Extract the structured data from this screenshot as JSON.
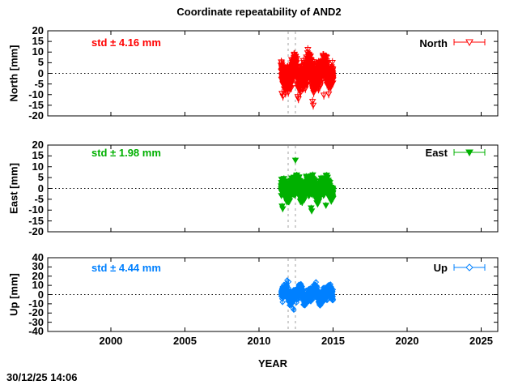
{
  "chart": {
    "title": "Coordinate repeatability of AND2",
    "xlabel": "YEAR",
    "timestamp": "30/12/25 14:06",
    "xlim": [
      1995.74,
      2026.12
    ],
    "xticks": [
      2000,
      2005,
      2010,
      2015,
      2020,
      2025
    ],
    "vlines": [
      2011.97,
      2012.46
    ],
    "vline_color": "#a0a0a0",
    "zero_line": 0,
    "background": "#ffffff",
    "axis_color": "#000000",
    "grid": "off",
    "legend_position": "top-right-inside"
  },
  "chart_data": [
    {
      "type": "scatter",
      "name": "North",
      "ylabel": "North [mm]",
      "std_label": "std ± 4.16 mm",
      "std_value_mm": 4.16,
      "legend_label": "North",
      "color": "#ff0000",
      "marker": "triangle-down-open",
      "ylim": [
        -20,
        20
      ],
      "ytick_step": 5,
      "x_range": [
        2011.5,
        2015.0
      ],
      "n_points": 900,
      "seed": 11,
      "annual_amp": 3.2,
      "semiannual_amp": 1.5,
      "phase1": 0.1,
      "phase2": 0.3,
      "noise_std": 2.8,
      "clip": [
        -12,
        9
      ],
      "errorbar_mm": 2.0,
      "outliers": [
        [
          2011.55,
          -9.5
        ],
        [
          2011.62,
          -10.8
        ],
        [
          2012.62,
          -11.0
        ],
        [
          2012.66,
          -12.0
        ],
        [
          2013.28,
          9.6
        ],
        [
          2013.3,
          11.2
        ],
        [
          2013.62,
          -13.2
        ],
        [
          2013.66,
          -15.0
        ],
        [
          2014.38,
          -10.3
        ]
      ]
    },
    {
      "type": "scatter",
      "name": "East",
      "ylabel": "East [mm]",
      "std_label": "std ± 1.98 mm",
      "std_value_mm": 1.98,
      "legend_label": "East",
      "color": "#00b000",
      "marker": "triangle-down-filled",
      "ylim": [
        -20,
        20
      ],
      "ytick_step": 5,
      "x_range": [
        2011.5,
        2015.0
      ],
      "n_points": 900,
      "seed": 22,
      "annual_amp": 2.0,
      "semiannual_amp": 1.0,
      "phase1": 0.2,
      "phase2": 0.05,
      "noise_std": 1.9,
      "clip": [
        -7.5,
        8.5
      ],
      "errorbar_mm": 1.5,
      "outliers": [
        [
          2011.56,
          -8.2
        ],
        [
          2011.6,
          -9.4
        ],
        [
          2012.46,
          13.0
        ],
        [
          2013.52,
          -9.0
        ],
        [
          2013.56,
          -10.4
        ],
        [
          2014.52,
          -7.8
        ]
      ]
    },
    {
      "type": "scatter",
      "name": "Up",
      "ylabel": "Up [mm]",
      "std_label": "std ± 4.44 mm",
      "std_value_mm": 4.44,
      "legend_label": "Up",
      "color": "#0080ff",
      "marker": "diamond-open",
      "ylim": [
        -40,
        40
      ],
      "ytick_step": 10,
      "x_range": [
        2011.5,
        2015.0
      ],
      "n_points": 900,
      "seed": 33,
      "annual_amp": 4.5,
      "semiannual_amp": 2.5,
      "phase1": 0.45,
      "phase2": 0.2,
      "noise_std": 3.4,
      "clip": [
        -12,
        12
      ],
      "errorbar_mm": 3.0,
      "outliers": [
        [
          2011.9,
          15.5
        ],
        [
          2012.0,
          14.0
        ],
        [
          2012.3,
          -15.0
        ],
        [
          2012.35,
          -16.5
        ],
        [
          2013.85,
          13.5
        ]
      ]
    }
  ]
}
